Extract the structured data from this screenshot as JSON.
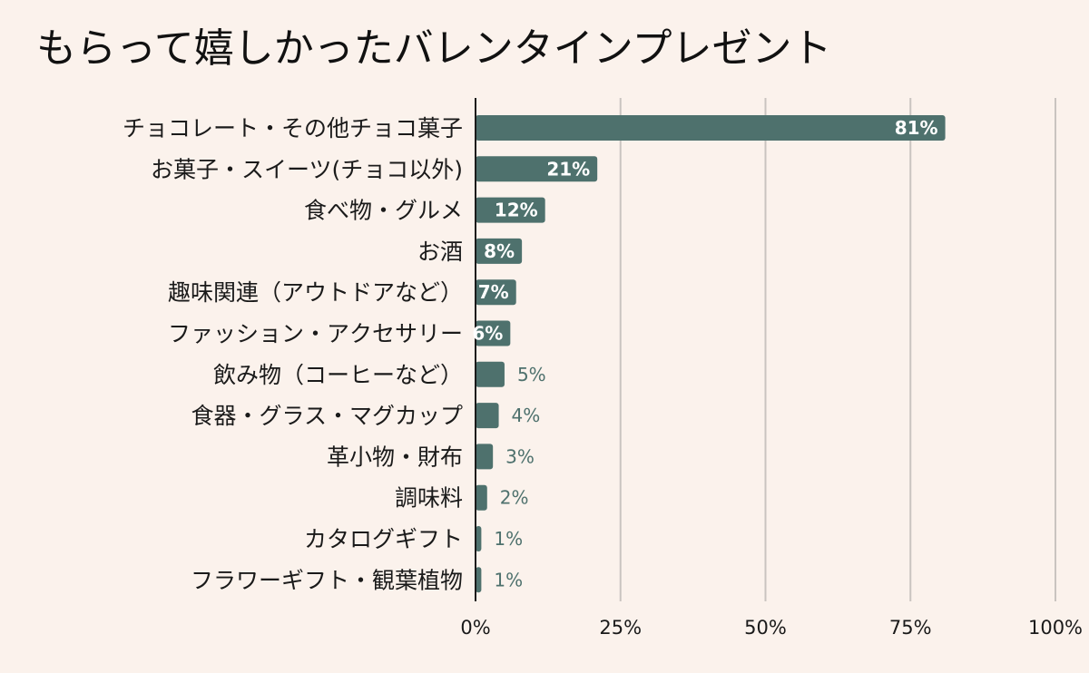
{
  "chart_data": {
    "type": "bar",
    "orientation": "horizontal",
    "title": "もらって嬉しかったバレンタインプレゼント",
    "categories": [
      "チョコレート・その他チョコ菓子",
      "お菓子・スイーツ(チョコ以外)",
      "食べ物・グルメ",
      "お酒",
      "趣味関連（アウトドアなど）",
      "ファッション・アクセサリー",
      "飲み物（コーヒーなど）",
      "食器・グラス・マグカップ",
      "革小物・財布",
      "調味料",
      "カタログギフト",
      "フラワーギフト・観葉植物"
    ],
    "values": [
      81,
      21,
      12,
      8,
      7,
      6,
      5,
      4,
      3,
      2,
      1,
      1
    ],
    "value_labels": [
      "81%",
      "21%",
      "12%",
      "8%",
      "7%",
      "6%",
      "5%",
      "4%",
      "3%",
      "2%",
      "1%",
      "1%"
    ],
    "xlim": [
      0,
      100
    ],
    "ticks": [
      0,
      25,
      50,
      75,
      100
    ],
    "tick_labels": [
      "0%",
      "25%",
      "50%",
      "75%",
      "100%"
    ],
    "grid": true,
    "legend": "none",
    "colors": {
      "bar": "#4e716d",
      "background": "#fbf2ec",
      "grid": "#c9c4c0",
      "axis": "#1a1a1a"
    }
  }
}
